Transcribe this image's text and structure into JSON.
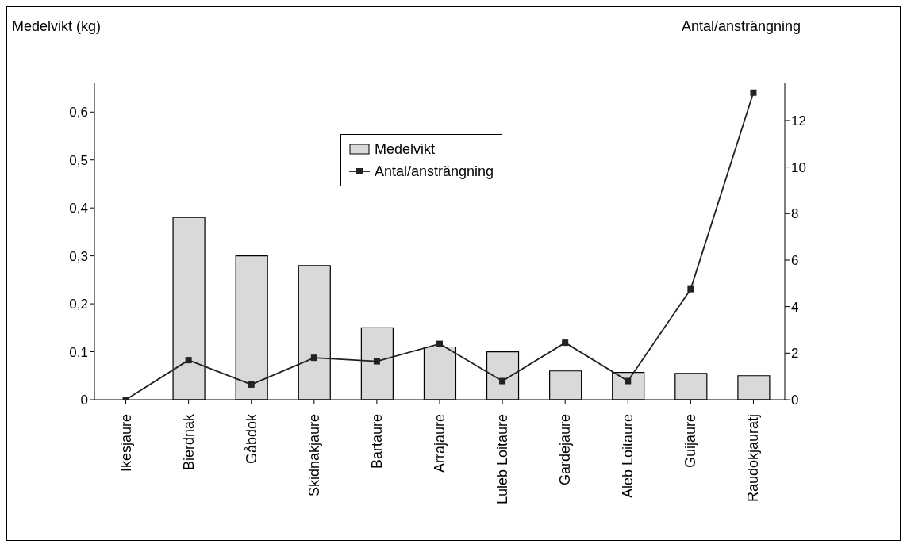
{
  "chart_data": {
    "type": "bar",
    "categories": [
      "Ikesjaure",
      "Bierdnak",
      "Gåbdok",
      "Skidnakjaure",
      "Bartaure",
      "Arrajaure",
      "Luleb Loitaure",
      "Gardejaure",
      "Aleb Loitaure",
      "Guijaure",
      "Raudokjauratj"
    ],
    "series": [
      {
        "name": "Medelvikt",
        "color": "#d9d9d9",
        "values": [
          0,
          0.38,
          0.3,
          0.28,
          0.15,
          0.11,
          0.1,
          0.06,
          0.057,
          0.055,
          0.05
        ]
      },
      {
        "name": "Antal/ansträngning",
        "type": "line",
        "axis": "y2",
        "color": "#222222",
        "values": [
          0,
          1.7,
          0.65,
          1.8,
          1.65,
          2.4,
          0.8,
          2.45,
          0.8,
          4.75,
          13.2
        ]
      }
    ],
    "ylabel": "Medelvikt (kg)",
    "y2label": "Antal/ansträngning",
    "ylim": [
      0,
      0.66
    ],
    "yticks": [
      0,
      {
        "value": 0.1,
        "label": "0,1"
      },
      {
        "value": 0.2,
        "label": "0,2"
      },
      {
        "value": 0.3,
        "label": "0,3"
      },
      {
        "value": 0.4,
        "label": "0,4"
      },
      {
        "value": 0.5,
        "label": "0,5"
      },
      {
        "value": 0.6,
        "label": "0,6"
      }
    ],
    "y2lim": [
      0,
      13.6
    ],
    "y2ticks": [
      0,
      2,
      4,
      6,
      8,
      10,
      12
    ],
    "marker": "square",
    "line_style": "solid",
    "grid": false,
    "legend": "top"
  }
}
